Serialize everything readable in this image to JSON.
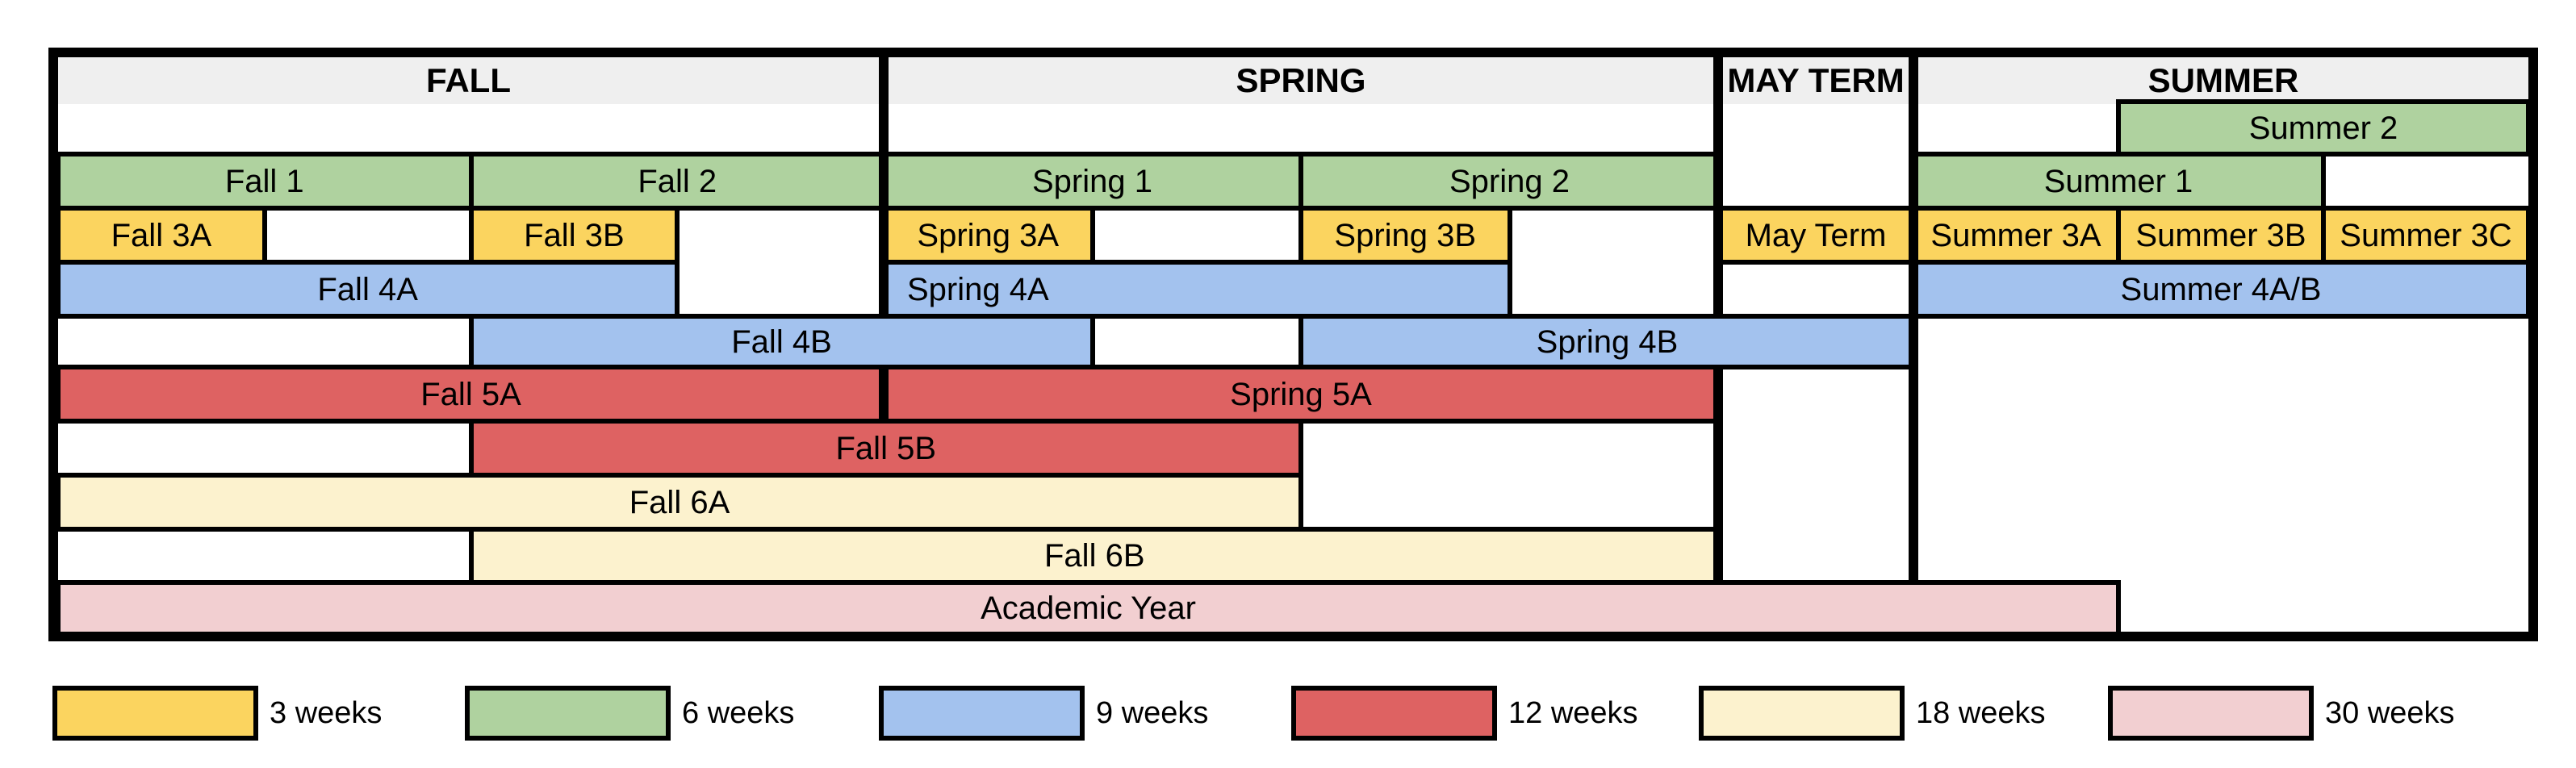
{
  "palette": {
    "yellow": "#FBD45F",
    "green": "#AFD29F",
    "blue": "#A3C2EE",
    "red": "#DE6262",
    "cream": "#FCF2CE",
    "pink": "#F2CFD1",
    "header_bg": "#EFEFEF",
    "border": "#000000"
  },
  "terms": [
    {
      "id": "fall",
      "label": "FALL",
      "weeks": 12
    },
    {
      "id": "spring",
      "label": "SPRING",
      "weeks": 12
    },
    {
      "id": "may",
      "label": "MAY TERM",
      "weeks": 3
    },
    {
      "id": "summer",
      "label": "SUMMER",
      "weeks": 9
    }
  ],
  "sessions": [
    {
      "label": "Summer 2",
      "color": "green",
      "row": 0,
      "start": [
        "summer",
        3
      ],
      "end": [
        "summer",
        9
      ]
    },
    {
      "label": "Fall 1",
      "color": "green",
      "row": 1,
      "start": [
        "fall",
        0
      ],
      "end": [
        "fall",
        6
      ]
    },
    {
      "label": "Fall 2",
      "color": "green",
      "row": 1,
      "start": [
        "fall",
        6
      ],
      "end": [
        "fall",
        12
      ]
    },
    {
      "label": "Spring 1",
      "color": "green",
      "row": 1,
      "start": [
        "spring",
        0
      ],
      "end": [
        "spring",
        6
      ]
    },
    {
      "label": "Spring 2",
      "color": "green",
      "row": 1,
      "start": [
        "spring",
        6
      ],
      "end": [
        "spring",
        12
      ]
    },
    {
      "label": "Summer 1",
      "color": "green",
      "row": 1,
      "start": [
        "summer",
        0
      ],
      "end": [
        "summer",
        6
      ]
    },
    {
      "label": "Fall 3A",
      "color": "yellow",
      "row": 2,
      "start": [
        "fall",
        0
      ],
      "end": [
        "fall",
        3
      ]
    },
    {
      "label": "Fall 3B",
      "color": "yellow",
      "row": 2,
      "start": [
        "fall",
        6
      ],
      "end": [
        "fall",
        9
      ]
    },
    {
      "label": "Spring 3A",
      "color": "yellow",
      "row": 2,
      "start": [
        "spring",
        0
      ],
      "end": [
        "spring",
        3
      ]
    },
    {
      "label": "Spring 3B",
      "color": "yellow",
      "row": 2,
      "start": [
        "spring",
        6
      ],
      "end": [
        "spring",
        9
      ]
    },
    {
      "label": "May Term",
      "color": "yellow",
      "row": 2,
      "start": [
        "may",
        0
      ],
      "end": [
        "may",
        3
      ]
    },
    {
      "label": "Summer 3A",
      "color": "yellow",
      "row": 2,
      "start": [
        "summer",
        0
      ],
      "end": [
        "summer",
        3
      ]
    },
    {
      "label": "Summer 3B",
      "color": "yellow",
      "row": 2,
      "start": [
        "summer",
        3
      ],
      "end": [
        "summer",
        6
      ]
    },
    {
      "label": "Summer 3C",
      "color": "yellow",
      "row": 2,
      "start": [
        "summer",
        6
      ],
      "end": [
        "summer",
        9
      ]
    },
    {
      "label": "Fall 4A",
      "color": "blue",
      "row": 3,
      "start": [
        "fall",
        0
      ],
      "end": [
        "fall",
        9
      ]
    },
    {
      "label": "Spring 4A",
      "color": "blue",
      "row": 3,
      "start": [
        "spring",
        0
      ],
      "end": [
        "spring",
        9
      ],
      "align": "left"
    },
    {
      "label": "Summer 4A/B",
      "color": "blue",
      "row": 3,
      "start": [
        "summer",
        0
      ],
      "end": [
        "summer",
        9
      ]
    },
    {
      "label": "Fall 4B",
      "color": "blue",
      "row": 4,
      "start": [
        "fall",
        6
      ],
      "end": [
        "spring",
        3
      ]
    },
    {
      "label": "Spring 4B",
      "color": "blue",
      "row": 4,
      "start": [
        "spring",
        6
      ],
      "end": [
        "may",
        3
      ]
    },
    {
      "label": "Fall 5A",
      "color": "red",
      "row": 5,
      "start": [
        "fall",
        0
      ],
      "end": [
        "fall",
        12
      ]
    },
    {
      "label": "Spring 5A",
      "color": "red",
      "row": 5,
      "start": [
        "spring",
        0
      ],
      "end": [
        "spring",
        12
      ]
    },
    {
      "label": "Fall 5B",
      "color": "red",
      "row": 6,
      "start": [
        "fall",
        6
      ],
      "end": [
        "spring",
        6
      ]
    },
    {
      "label": "Fall 6A",
      "color": "cream",
      "row": 7,
      "start": [
        "fall",
        0
      ],
      "end": [
        "spring",
        6
      ]
    },
    {
      "label": "Fall 6B",
      "color": "cream",
      "row": 8,
      "start": [
        "fall",
        6
      ],
      "end": [
        "spring",
        12
      ]
    },
    {
      "label": "Academic Year",
      "color": "pink",
      "row": 9,
      "start": [
        "fall",
        0
      ],
      "end": [
        "summer",
        3
      ]
    }
  ],
  "legend": [
    {
      "label": "3 weeks",
      "color": "yellow"
    },
    {
      "label": "6 weeks",
      "color": "green"
    },
    {
      "label": "9 weeks",
      "color": "blue"
    },
    {
      "label": "12 weeks",
      "color": "red"
    },
    {
      "label": "18 weeks",
      "color": "cream"
    },
    {
      "label": "30 weeks",
      "color": "pink"
    }
  ]
}
